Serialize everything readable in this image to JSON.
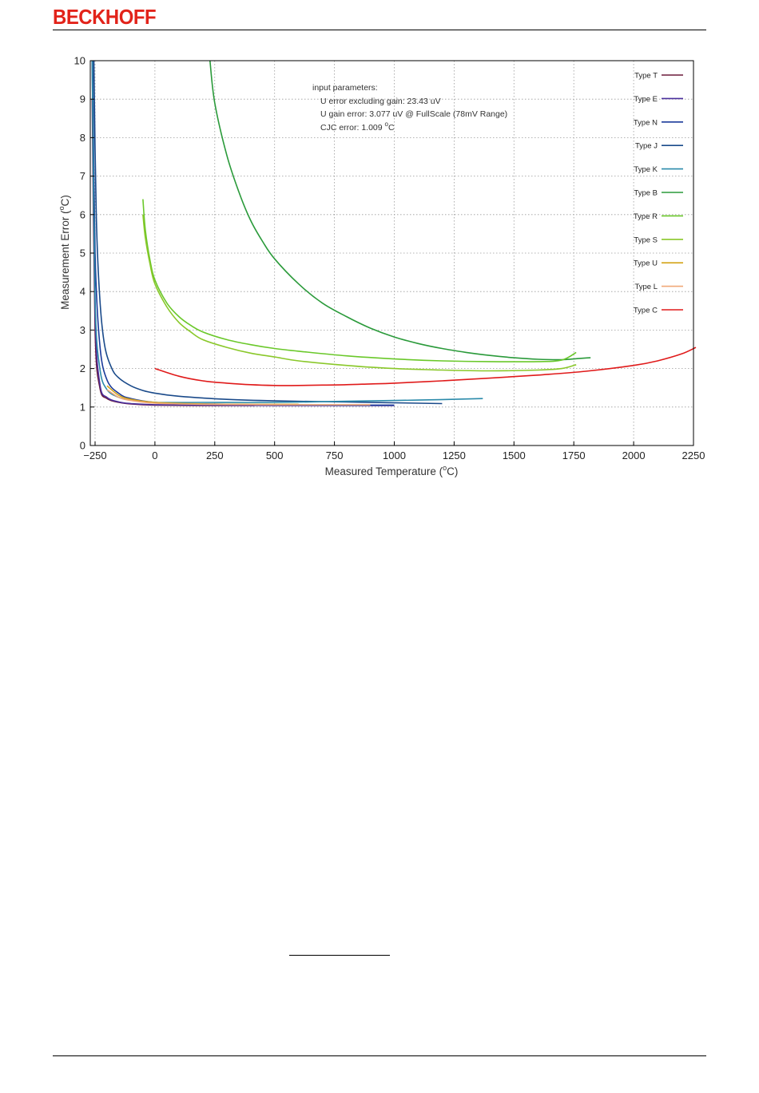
{
  "header": {
    "brand": "BECKHOFF"
  },
  "colors": {
    "brand": "#e2231a"
  },
  "chart_data": {
    "type": "line",
    "title": "",
    "xlabel": "Measured Temperature (°C)",
    "xlabel_main": "Measured Temperature (",
    "xlabel_sup": "o",
    "xlabel_end": "C)",
    "ylabel_main": "Measurement Error (",
    "ylabel_sup": "o",
    "ylabel_end": "C)",
    "xlim": [
      -270,
      2250
    ],
    "ylim": [
      0,
      10
    ],
    "xticks": [
      -250,
      0,
      250,
      500,
      750,
      1000,
      1250,
      1500,
      1750,
      2000,
      2250
    ],
    "yticks": [
      0,
      1,
      2,
      3,
      4,
      5,
      6,
      7,
      8,
      9,
      10
    ],
    "xtick_labels": [
      "−250",
      "0",
      "250",
      "500",
      "750",
      "1000",
      "1250",
      "1500",
      "1750",
      "2000",
      "2250"
    ],
    "ytick_labels": [
      "0",
      "1",
      "2",
      "3",
      "4",
      "5",
      "6",
      "7",
      "8",
      "9",
      "10"
    ],
    "grid": true,
    "legend_position": "right",
    "annotation": {
      "heading": "input parameters:",
      "line1": "U error excluding gain: 23.43 uV",
      "line2": "U gain error: 3.077 uV @ FullScale (78mV Range)",
      "line3_main": "CJC error: 1.009 ",
      "line3_sup": "o",
      "line3_end": "C"
    },
    "series": [
      {
        "name": "Type T",
        "color": "#6b1a3a",
        "x": [
          -262,
          -250,
          -230,
          -200,
          -150,
          -100,
          0,
          200,
          400,
          400
        ],
        "y": [
          9.0,
          3.0,
          1.5,
          1.22,
          1.12,
          1.08,
          1.05,
          1.04,
          1.04,
          1.04
        ]
      },
      {
        "name": "Type E",
        "color": "#4a2f9c",
        "x": [
          -262,
          -250,
          -230,
          -200,
          -150,
          -100,
          0,
          200,
          500,
          800,
          1000
        ],
        "y": [
          10.0,
          3.5,
          1.6,
          1.25,
          1.13,
          1.09,
          1.06,
          1.05,
          1.04,
          1.04,
          1.04
        ]
      },
      {
        "name": "Type N",
        "color": "#1a3a9a",
        "x": [
          -260,
          -250,
          -230,
          -200,
          -150,
          -100,
          0,
          200,
          500,
          800,
          1000
        ],
        "y": [
          10.0,
          5.0,
          2.6,
          1.7,
          1.35,
          1.22,
          1.12,
          1.08,
          1.06,
          1.05,
          1.05
        ]
      },
      {
        "name": "Type J",
        "color": "#1a4a8a",
        "x": [
          -255,
          -245,
          -230,
          -210,
          -180,
          -150,
          -100,
          -50,
          0,
          100,
          300,
          500,
          800,
          1100,
          1200
        ],
        "y": [
          10.0,
          6.0,
          3.8,
          2.6,
          2.0,
          1.75,
          1.55,
          1.43,
          1.36,
          1.28,
          1.2,
          1.16,
          1.13,
          1.1,
          1.09
        ]
      },
      {
        "name": "Type K",
        "color": "#2a8aaa",
        "x": [
          -262,
          -250,
          -230,
          -200,
          -150,
          -100,
          0,
          200,
          500,
          800,
          1100,
          1370
        ],
        "y": [
          10.0,
          3.8,
          2.0,
          1.45,
          1.25,
          1.18,
          1.12,
          1.12,
          1.12,
          1.15,
          1.18,
          1.22
        ]
      },
      {
        "name": "Type B",
        "color": "#2a9a3a",
        "x": [
          230,
          250,
          300,
          350,
          400,
          450,
          500,
          600,
          700,
          800,
          900,
          1000,
          1100,
          1200,
          1300,
          1400,
          1500,
          1600,
          1700,
          1750,
          1820
        ],
        "y": [
          10.0,
          8.9,
          7.55,
          6.6,
          5.85,
          5.3,
          4.85,
          4.2,
          3.7,
          3.35,
          3.05,
          2.82,
          2.65,
          2.52,
          2.42,
          2.34,
          2.28,
          2.24,
          2.23,
          2.25,
          2.28
        ]
      },
      {
        "name": "Type R",
        "color": "#6ac82a",
        "x": [
          -50,
          -40,
          -20,
          0,
          50,
          100,
          150,
          200,
          300,
          400,
          500,
          600,
          800,
          1000,
          1200,
          1400,
          1600,
          1700,
          1760
        ],
        "y": [
          6.4,
          5.6,
          4.8,
          4.3,
          3.7,
          3.35,
          3.12,
          2.95,
          2.75,
          2.62,
          2.52,
          2.45,
          2.33,
          2.25,
          2.2,
          2.18,
          2.18,
          2.22,
          2.42
        ]
      },
      {
        "name": "Type S",
        "color": "#8ac82a",
        "x": [
          -50,
          -40,
          -20,
          0,
          50,
          100,
          150,
          200,
          300,
          400,
          500,
          600,
          800,
          1000,
          1200,
          1400,
          1600,
          1700,
          1760
        ],
        "y": [
          6.0,
          5.4,
          4.7,
          4.2,
          3.6,
          3.2,
          2.95,
          2.75,
          2.55,
          2.4,
          2.3,
          2.2,
          2.08,
          2.0,
          1.96,
          1.94,
          1.96,
          2.0,
          2.1
        ]
      },
      {
        "name": "Type U",
        "color": "#d4a418",
        "x": [
          -200,
          -150,
          -100,
          0,
          200,
          400,
          600
        ],
        "y": [
          1.55,
          1.3,
          1.2,
          1.12,
          1.08,
          1.07,
          1.07
        ]
      },
      {
        "name": "Type L",
        "color": "#f0a878",
        "x": [
          -200,
          -150,
          -100,
          0,
          200,
          500,
          900
        ],
        "y": [
          1.45,
          1.25,
          1.17,
          1.1,
          1.07,
          1.06,
          1.06
        ]
      },
      {
        "name": "Type C",
        "color": "#e01a1a",
        "x": [
          0,
          100,
          200,
          300,
          400,
          500,
          600,
          700,
          800,
          900,
          1000,
          1200,
          1400,
          1600,
          1800,
          2000,
          2100,
          2200,
          2260
        ],
        "y": [
          2.0,
          1.8,
          1.68,
          1.62,
          1.58,
          1.56,
          1.56,
          1.57,
          1.58,
          1.6,
          1.62,
          1.68,
          1.75,
          1.83,
          1.93,
          2.08,
          2.2,
          2.38,
          2.55
        ]
      }
    ]
  }
}
